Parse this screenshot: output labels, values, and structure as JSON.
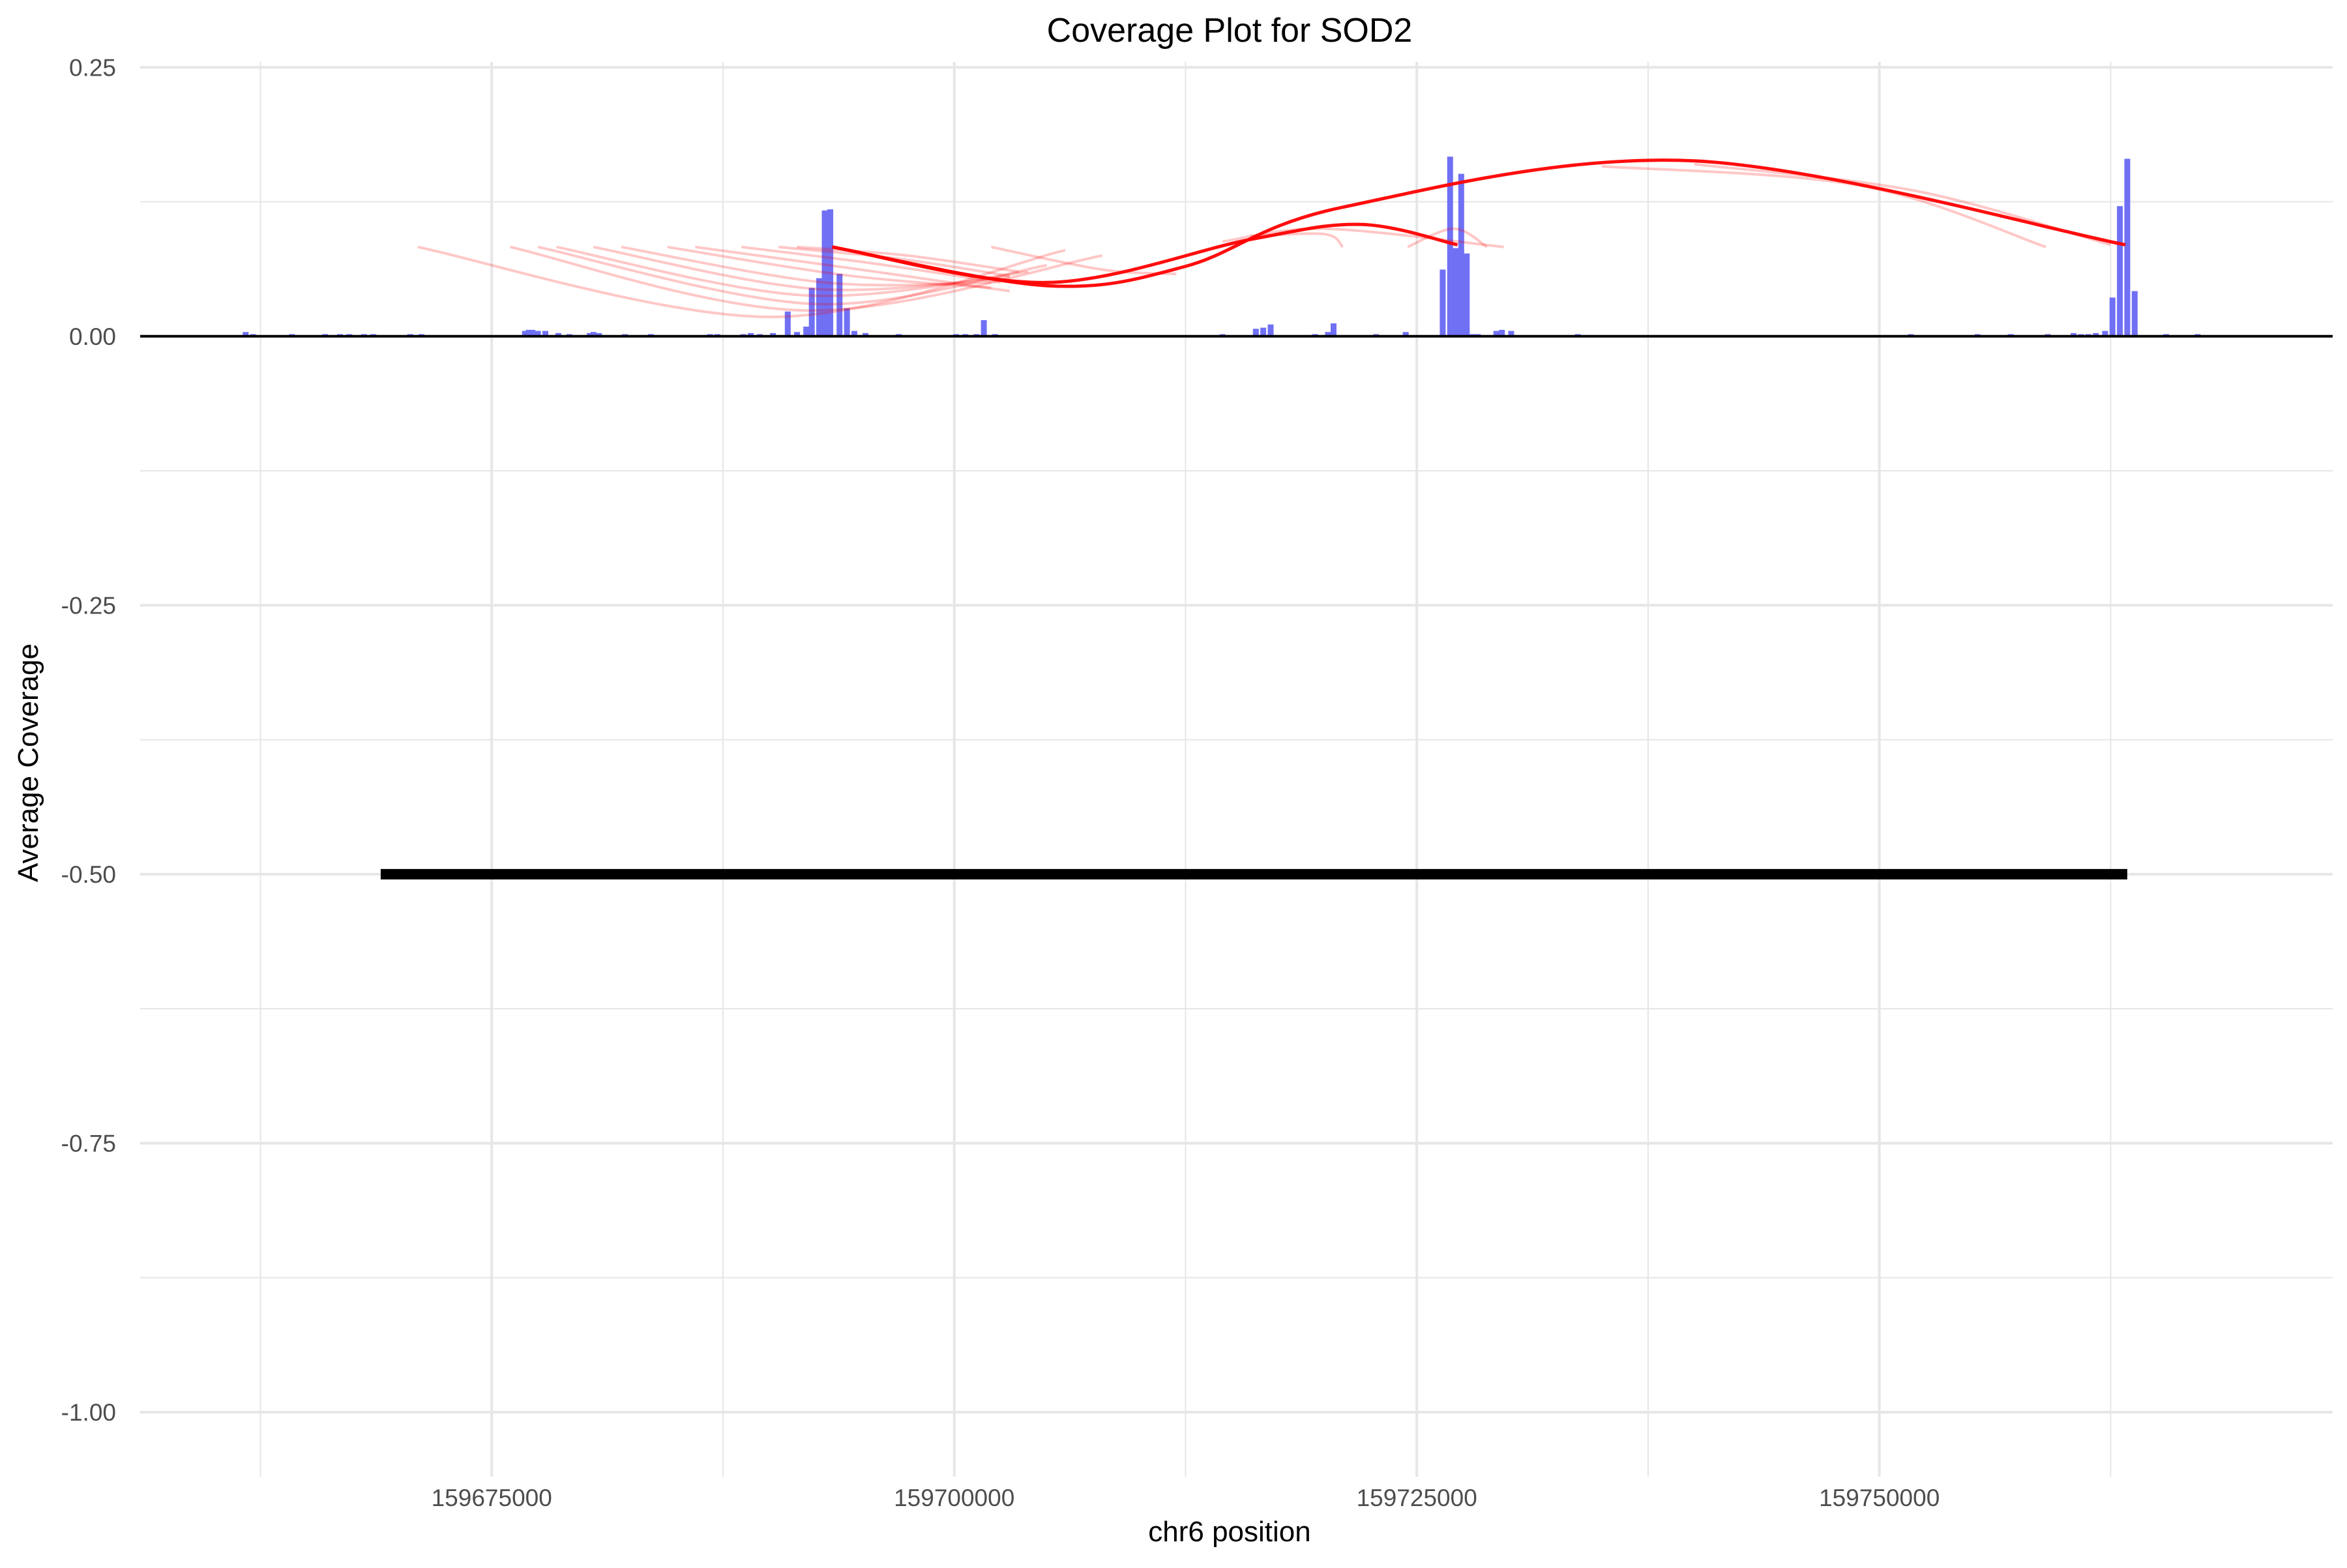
{
  "chart_data": {
    "type": "bar",
    "title": "Coverage Plot for SOD2",
    "xlabel": "chr6 position",
    "ylabel": "Average Coverage",
    "xlim": [
      159656000,
      159774500
    ],
    "ylim": [
      -1.06,
      0.255
    ],
    "x_ticks": [
      159675000,
      159700000,
      159725000,
      159750000
    ],
    "x_tick_labels": [
      "159675000",
      "159700000",
      "159725000",
      "159750000"
    ],
    "y_ticks": [
      0.25,
      0.0,
      -0.25,
      -0.5,
      -0.75,
      -1.0
    ],
    "y_tick_labels": [
      "0.25",
      "0.00",
      "-0.25",
      "-0.50",
      "-0.75",
      "-1.00"
    ],
    "grid": true,
    "legend": "none",
    "colors": {
      "coverage": "#7070f5",
      "junction": "#ff0000",
      "baseline": "#000000",
      "gene": "#000000",
      "grid": "#e6e6e6"
    },
    "coverage_series": {
      "name": "coverage",
      "x": [
        159661700,
        159662100,
        159663800,
        159664200,
        159665500,
        159666000,
        159666800,
        159667300,
        159668100,
        159668600,
        159669700,
        159670600,
        159671200,
        159676800,
        159677000,
        159677200,
        159677500,
        159677900,
        159678600,
        159679200,
        159680300,
        159680500,
        159680800,
        159682200,
        159683600,
        159686800,
        159687200,
        159688600,
        159689000,
        159689500,
        159690200,
        159691000,
        159691500,
        159692000,
        159692300,
        159692700,
        159693000,
        159693300,
        159693800,
        159694200,
        159694600,
        159695200,
        159697000,
        159700100,
        159700600,
        159701200,
        159701600,
        159702200,
        159710500,
        159714500,
        159716300,
        159716700,
        159717100,
        159719500,
        159720200,
        159720500,
        159722800,
        159724400,
        159726400,
        159726800,
        159727100,
        159727400,
        159727700,
        159728000,
        159728300,
        159729300,
        159729600,
        159730100,
        159733700,
        159751700,
        159755300,
        159757100,
        159759100,
        159760500,
        159760900,
        159761300,
        159761700,
        159762200,
        159762600,
        159763000,
        159763400,
        159763800,
        159765500,
        159767200
      ],
      "values": [
        0.004,
        0.002,
        0.001,
        0.002,
        0.001,
        0.002,
        0.002,
        0.002,
        0.002,
        0.002,
        0.001,
        0.002,
        0.002,
        0.005,
        0.006,
        0.006,
        0.005,
        0.005,
        0.003,
        0.002,
        0.003,
        0.004,
        0.003,
        0.002,
        0.002,
        0.002,
        0.002,
        0.002,
        0.003,
        0.002,
        0.003,
        0.023,
        0.004,
        0.009,
        0.045,
        0.054,
        0.117,
        0.118,
        0.058,
        0.026,
        0.005,
        0.003,
        0.002,
        0.002,
        0.002,
        0.002,
        0.015,
        0.002,
        0.001,
        0.002,
        0.007,
        0.008,
        0.011,
        0.002,
        0.004,
        0.012,
        0.002,
        0.004,
        0.062,
        0.167,
        0.082,
        0.151,
        0.077,
        0.002,
        0.002,
        0.005,
        0.006,
        0.005,
        0.002,
        0.002,
        0.002,
        0.002,
        0.002,
        0.003,
        0.002,
        0.002,
        0.003,
        0.005,
        0.036,
        0.121,
        0.165,
        0.042,
        0.002,
        0.002
      ]
    },
    "main_junctions": [
      {
        "x": [
          159693400,
          159705000,
          159716000,
          159722000,
          159727200
        ],
        "y": [
          0.083,
          0.05,
          0.09,
          0.104,
          0.085
        ]
      },
      {
        "x": [
          159693400,
          159705000,
          159712500,
          159721000,
          159740000,
          159763300
        ],
        "y": [
          0.083,
          0.047,
          0.065,
          0.12,
          0.163,
          0.085
        ]
      }
    ],
    "faint_junctions": [
      {
        "x": [
          159671000,
          159690000,
          159706000
        ],
        "y": [
          0.083,
          0.018,
          0.08
        ]
      },
      {
        "x": [
          159676000,
          159692000,
          159708000
        ],
        "y": [
          0.083,
          0.024,
          0.075
        ]
      },
      {
        "x": [
          159677500,
          159692500,
          159705000
        ],
        "y": [
          0.083,
          0.03,
          0.066
        ]
      },
      {
        "x": [
          159678500,
          159692000,
          159704000
        ],
        "y": [
          0.083,
          0.038,
          0.06
        ]
      },
      {
        "x": [
          159680500,
          159692500,
          159703000
        ],
        "y": [
          0.083,
          0.044,
          0.055
        ]
      },
      {
        "x": [
          159682000,
          159693000,
          159702000
        ],
        "y": [
          0.083,
          0.05,
          0.05
        ]
      },
      {
        "x": [
          159684500,
          159694000,
          159702000
        ],
        "y": [
          0.083,
          0.057,
          0.045
        ]
      },
      {
        "x": [
          159686000,
          159694500,
          159703000
        ],
        "y": [
          0.083,
          0.063,
          0.042
        ]
      },
      {
        "x": [
          159688500,
          159695500,
          159702500
        ],
        "y": [
          0.083,
          0.068,
          0.05
        ]
      },
      {
        "x": [
          159690500,
          159697000,
          159703000
        ],
        "y": [
          0.083,
          0.072,
          0.056
        ]
      },
      {
        "x": [
          159691500,
          159697500,
          159703500
        ],
        "y": [
          0.083,
          0.075,
          0.06
        ]
      },
      {
        "x": [
          159702000,
          159708000,
          159712000
        ],
        "y": [
          0.083,
          0.062,
          0.058
        ]
      },
      {
        "x": [
          159714500,
          159720000,
          159729700
        ],
        "y": [
          0.088,
          0.1,
          0.083
        ]
      },
      {
        "x": [
          159716000,
          159720000,
          159721000
        ],
        "y": [
          0.093,
          0.095,
          0.083
        ]
      },
      {
        "x": [
          159724500,
          159727000,
          159728800
        ],
        "y": [
          0.083,
          0.1,
          0.083
        ]
      },
      {
        "x": [
          159735000,
          159749000,
          159759000
        ],
        "y": [
          0.158,
          0.14,
          0.083
        ]
      },
      {
        "x": [
          159740000,
          159752000,
          159762500
        ],
        "y": [
          0.16,
          0.135,
          0.085
        ]
      }
    ],
    "gene_segment": {
      "x_start": 159669000,
      "x_end": 159763400,
      "y": -0.5
    }
  }
}
